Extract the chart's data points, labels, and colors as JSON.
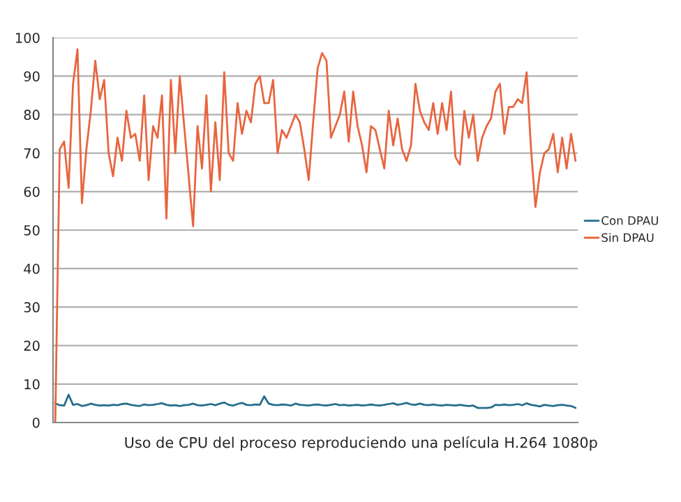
{
  "chart_data": {
    "type": "line",
    "title": "Uso de CPU del proceso reproduciendo una película H.264 1080p",
    "categories": [
      null,
      null,
      null,
      null,
      null,
      null,
      null,
      null,
      null,
      null,
      null,
      null,
      null,
      null,
      null,
      null,
      null,
      null,
      null,
      null,
      null,
      null,
      null,
      null,
      null,
      null,
      null,
      null,
      null,
      null,
      null,
      null,
      null,
      null,
      null,
      null,
      null,
      null,
      null,
      null,
      null,
      null,
      null,
      null,
      null,
      null,
      null,
      null,
      null,
      null,
      null,
      null,
      null,
      null,
      null,
      null,
      null,
      null,
      null,
      null,
      null,
      null,
      null,
      null,
      null,
      null,
      null,
      null,
      null,
      null,
      null,
      null,
      null,
      null,
      null,
      null,
      null,
      null,
      null,
      null,
      null,
      null,
      null,
      null,
      null,
      null,
      null,
      null,
      null,
      null,
      null,
      null,
      null,
      null,
      null,
      null,
      null,
      null,
      null,
      null,
      null,
      null,
      null,
      null,
      null,
      null,
      null,
      null,
      null,
      null,
      null,
      null,
      null,
      null,
      null,
      null,
      null,
      null
    ],
    "series": [
      {
        "name": "Con DPAU",
        "color": "#256d8c",
        "values": [
          5.0,
          4.5,
          4.4,
          7.2,
          4.6,
          4.8,
          4.3,
          4.5,
          4.9,
          4.6,
          4.4,
          4.5,
          4.4,
          4.6,
          4.5,
          4.8,
          4.9,
          4.6,
          4.4,
          4.3,
          4.7,
          4.5,
          4.6,
          4.8,
          5.0,
          4.6,
          4.4,
          4.5,
          4.3,
          4.5,
          4.6,
          4.9,
          4.5,
          4.4,
          4.6,
          4.8,
          4.5,
          4.9,
          5.2,
          4.6,
          4.4,
          4.8,
          5.1,
          4.6,
          4.5,
          4.7,
          4.6,
          6.8,
          4.9,
          4.6,
          4.5,
          4.7,
          4.6,
          4.4,
          4.9,
          4.6,
          4.5,
          4.4,
          4.6,
          4.7,
          4.5,
          4.4,
          4.6,
          4.8,
          4.5,
          4.6,
          4.4,
          4.5,
          4.6,
          4.4,
          4.5,
          4.7,
          4.5,
          4.4,
          4.6,
          4.8,
          5.0,
          4.6,
          4.8,
          5.1,
          4.7,
          4.6,
          4.9,
          4.6,
          4.5,
          4.7,
          4.5,
          4.4,
          4.6,
          4.5,
          4.4,
          4.6,
          4.4,
          4.3,
          4.4,
          3.8,
          3.8,
          3.8,
          3.9,
          4.6,
          4.5,
          4.7,
          4.5,
          4.6,
          4.8,
          4.5,
          5.0,
          4.6,
          4.4,
          4.2,
          4.6,
          4.4,
          4.3,
          4.5,
          4.6,
          4.4,
          4.3,
          3.8
        ]
      },
      {
        "name": "Sin DPAU",
        "color": "#e8653f",
        "values": [
          0,
          71,
          73,
          61,
          88,
          97,
          57,
          71,
          81,
          94,
          84,
          89,
          70,
          64,
          74,
          68,
          81,
          74,
          75,
          68,
          85,
          63,
          77,
          74,
          85,
          53,
          89,
          70,
          90,
          77,
          64,
          51,
          77,
          66,
          85,
          60,
          78,
          63,
          91,
          70,
          68,
          83,
          75,
          81,
          78,
          88,
          90,
          83,
          83,
          89,
          70,
          76,
          74,
          77,
          80,
          78,
          71,
          63,
          78,
          92,
          96,
          94,
          74,
          77,
          80,
          86,
          73,
          86,
          77,
          72,
          65,
          77,
          76,
          71,
          66,
          81,
          72,
          79,
          71,
          68,
          72,
          88,
          81,
          78,
          76,
          83,
          75,
          83,
          76,
          86,
          69,
          67,
          81,
          74,
          80,
          68,
          74,
          77,
          79,
          86,
          88,
          75,
          82,
          82,
          84,
          83,
          91,
          71,
          56,
          65,
          70,
          71,
          75,
          65,
          74,
          66,
          75,
          68
        ]
      }
    ],
    "ylim": [
      0,
      100
    ],
    "yticks": [
      0,
      10,
      20,
      30,
      40,
      50,
      60,
      70,
      80,
      90,
      100
    ],
    "grid": "y",
    "legend": "right",
    "marker": "none",
    "line_style": "solid"
  }
}
